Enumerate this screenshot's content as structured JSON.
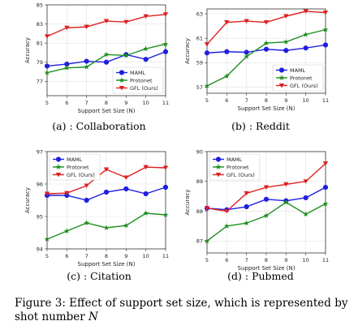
{
  "caption": {
    "line1": "Figure 3: Effect of support set size, which is represented by",
    "line2_prefix": "shot number",
    "line2_var": "N"
  },
  "chart_data": [
    {
      "type": "line",
      "subcaption": "(a) : Collaboration",
      "xlabel": "Support Set Size (N)",
      "ylabel": "Accuracy",
      "x": [
        5,
        6,
        7,
        8,
        9,
        10,
        11
      ],
      "xlim": [
        5,
        11
      ],
      "ylim": [
        75.5,
        85
      ],
      "yticks": [
        77,
        79,
        81,
        83,
        85
      ],
      "legend_position": "lower-right",
      "series": [
        {
          "name": "MAML",
          "color": "#1f1fe0",
          "marker": "circle",
          "values": [
            78.6,
            78.8,
            79.1,
            79.0,
            79.8,
            79.3,
            80.1
          ]
        },
        {
          "name": "Protonet",
          "color": "#1f8f1f",
          "marker": "star",
          "values": [
            77.9,
            78.4,
            78.5,
            79.8,
            79.7,
            80.4,
            80.9
          ]
        },
        {
          "name": "GFL (Ours)",
          "color": "#e01f1f",
          "marker": "triangle-down",
          "values": [
            81.7,
            82.6,
            82.7,
            83.3,
            83.2,
            83.8,
            84.0
          ]
        }
      ]
    },
    {
      "type": "line",
      "subcaption": "(b) : Reddit",
      "xlabel": "Support Set Size (N)",
      "ylabel": "Accuracy",
      "x": [
        5,
        6,
        7,
        8,
        9,
        10,
        11
      ],
      "xlim": [
        5,
        11
      ],
      "ylim": [
        56.5,
        63.4
      ],
      "yticks": [
        57,
        59,
        61,
        63
      ],
      "legend_position": "lower-right",
      "series": [
        {
          "name": "MAML",
          "color": "#1f1fe0",
          "marker": "circle",
          "values": [
            59.8,
            59.9,
            59.85,
            60.1,
            60.0,
            60.2,
            60.45
          ]
        },
        {
          "name": "Protonet",
          "color": "#1f8f1f",
          "marker": "star",
          "values": [
            57.1,
            57.9,
            59.5,
            60.6,
            60.7,
            61.3,
            61.7
          ]
        },
        {
          "name": "GFL (Ours)",
          "color": "#e01f1f",
          "marker": "triangle-down",
          "values": [
            60.5,
            62.3,
            62.4,
            62.3,
            62.8,
            63.2,
            63.1
          ]
        }
      ]
    },
    {
      "type": "line",
      "subcaption": "(c) : Citation",
      "xlabel": "Support Set Size (N)",
      "ylabel": "Accuracy",
      "x": [
        5,
        6,
        7,
        8,
        9,
        10,
        11
      ],
      "xlim": [
        5,
        11
      ],
      "ylim": [
        94,
        97
      ],
      "yticks": [
        94,
        95,
        96,
        97
      ],
      "legend_position": "upper-left",
      "series": [
        {
          "name": "MAML",
          "color": "#1f1fe0",
          "marker": "circle",
          "values": [
            95.65,
            95.65,
            95.5,
            95.75,
            95.85,
            95.7,
            95.9
          ]
        },
        {
          "name": "Protonet",
          "color": "#1f8f1f",
          "marker": "star",
          "values": [
            94.3,
            94.55,
            94.8,
            94.65,
            94.72,
            95.1,
            95.05
          ]
        },
        {
          "name": "GFL (Ours)",
          "color": "#e01f1f",
          "marker": "triangle-down",
          "values": [
            95.7,
            95.72,
            95.95,
            96.45,
            96.2,
            96.52,
            96.5
          ]
        }
      ]
    },
    {
      "type": "line",
      "subcaption": "(d) : Pubmed",
      "xlabel": "Support Set Size (N)",
      "ylabel": "Accuracy",
      "x": [
        5,
        6,
        7,
        8,
        9,
        10,
        11
      ],
      "xlim": [
        5,
        11
      ],
      "ylim": [
        86.6,
        90
      ],
      "yticks": [
        87,
        88,
        89,
        90
      ],
      "legend_position": "upper-left",
      "series": [
        {
          "name": "MAML",
          "color": "#1f1fe0",
          "marker": "circle",
          "values": [
            88.1,
            88.05,
            88.15,
            88.4,
            88.35,
            88.45,
            88.8
          ]
        },
        {
          "name": "Protonet",
          "color": "#1f8f1f",
          "marker": "star",
          "values": [
            87.0,
            87.5,
            87.6,
            87.85,
            88.3,
            87.9,
            88.25
          ]
        },
        {
          "name": "GFL (Ours)",
          "color": "#e01f1f",
          "marker": "triangle-down",
          "values": [
            88.1,
            88.0,
            88.6,
            88.8,
            88.9,
            89.0,
            89.6
          ]
        }
      ]
    }
  ]
}
